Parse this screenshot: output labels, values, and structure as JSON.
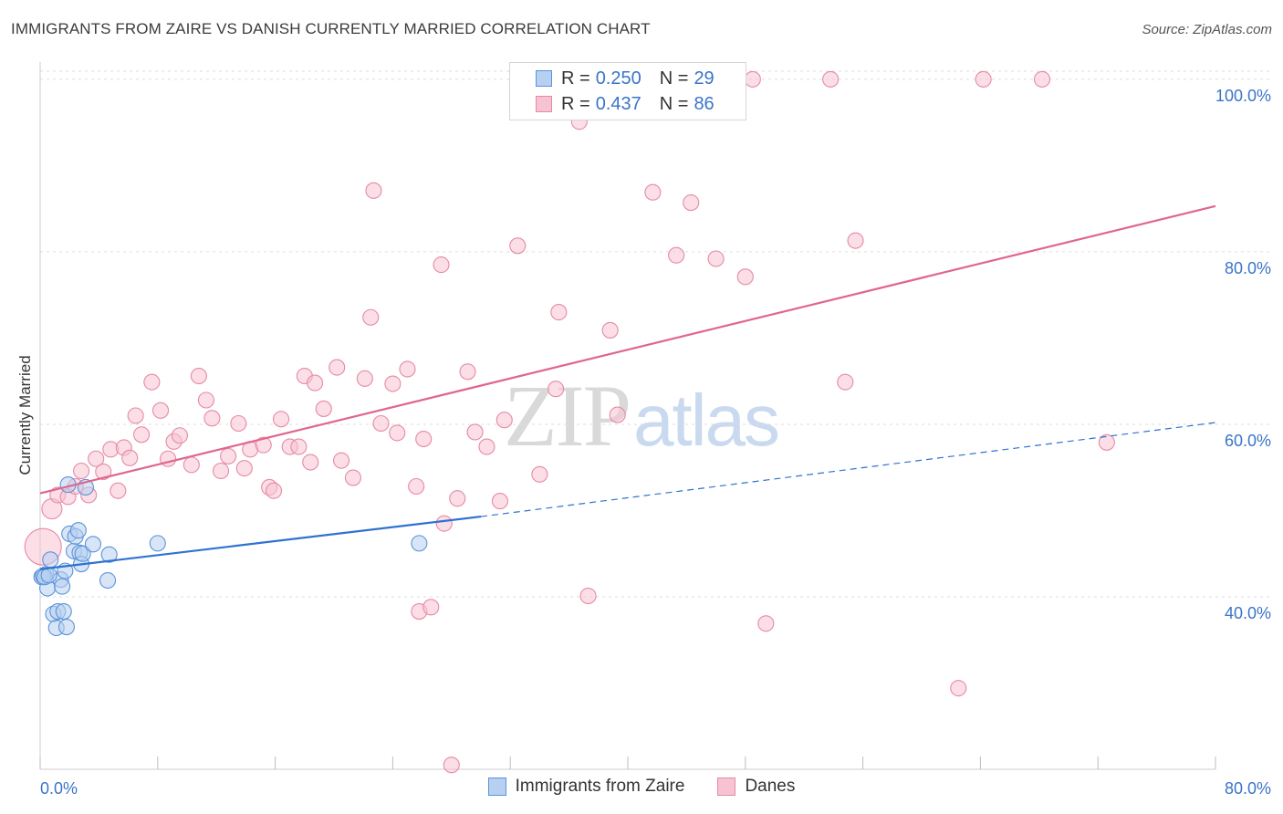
{
  "title": "IMMIGRANTS FROM ZAIRE VS DANISH CURRENTLY MARRIED CORRELATION CHART",
  "source": "Source: ZipAtlas.com",
  "watermark": {
    "zip": "ZIP",
    "atlas": "atlas"
  },
  "legend_top": {
    "rows": [
      {
        "r_key": "R =",
        "r_value": "0.250",
        "n_key": "N =",
        "n_value": "29"
      },
      {
        "r_key": "R =",
        "r_value": "0.437",
        "n_key": "N =",
        "n_value": "86"
      }
    ]
  },
  "legend_bottom": {
    "items": [
      {
        "label": "Immigrants from Zaire"
      },
      {
        "label": "Danes"
      }
    ]
  },
  "colors": {
    "blue_fill": "#b7d0f1",
    "blue_stroke": "#5c93d8",
    "blue_line": "#2f72d0",
    "pink_fill": "#f7c3d2",
    "pink_stroke": "#e68aa6",
    "pink_line": "#e0668e",
    "axis_text": "#3b74c8",
    "grid": "#dddddd"
  },
  "chart_data": {
    "type": "scatter",
    "title": "IMMIGRANTS FROM ZAIRE VS DANISH CURRENTLY MARRIED CORRELATION CHART",
    "xlabel": "",
    "ylabel": "Currently Married",
    "xlim": [
      0,
      80
    ],
    "ylim": [
      20,
      102
    ],
    "x_ticks": [
      {
        "value": 0,
        "label": "0.0%"
      },
      {
        "value": 80,
        "label": "80.0%"
      }
    ],
    "y_ticks": [
      {
        "value": 40,
        "label": "40.0%"
      },
      {
        "value": 60,
        "label": "60.0%"
      },
      {
        "value": 80,
        "label": "80.0%"
      },
      {
        "value": 100,
        "label": "100.0%"
      }
    ],
    "grid": true,
    "legend_position": "bottom",
    "series": [
      {
        "name": "Immigrants from Zaire",
        "color": "#5c93d8",
        "trend": {
          "x0": 0,
          "y0": 43.2,
          "x1": 30,
          "y1": 49.3,
          "dashed_to_x": 80,
          "dashed_to_y": 60.2
        },
        "points": [
          [
            0.1,
            42.3
          ],
          [
            0.4,
            42.6
          ],
          [
            0.5,
            41.0
          ],
          [
            0.7,
            44.3
          ],
          [
            0.9,
            38.0
          ],
          [
            1.1,
            36.4
          ],
          [
            1.2,
            38.3
          ],
          [
            1.4,
            42.0
          ],
          [
            1.5,
            41.2
          ],
          [
            1.6,
            38.3
          ],
          [
            1.7,
            43.0
          ],
          [
            1.8,
            36.5
          ],
          [
            1.9,
            53.0
          ],
          [
            2.0,
            47.3
          ],
          [
            2.3,
            45.3
          ],
          [
            2.4,
            47.0
          ],
          [
            2.6,
            47.7
          ],
          [
            2.7,
            45.1
          ],
          [
            2.8,
            43.8
          ],
          [
            2.9,
            45.0
          ],
          [
            3.1,
            52.7
          ],
          [
            3.6,
            46.1
          ],
          [
            4.7,
            44.9
          ],
          [
            4.6,
            41.9
          ],
          [
            8.0,
            46.2
          ],
          [
            25.8,
            46.2
          ],
          [
            0.2,
            42.4
          ],
          [
            0.3,
            42.3
          ],
          [
            0.6,
            42.5
          ]
        ]
      },
      {
        "name": "Danes",
        "color": "#e68aa6",
        "trend": {
          "x0": 0,
          "y0": 52.0,
          "x1": 80,
          "y1": 85.3
        },
        "points": [
          [
            0.2,
            45.8
          ],
          [
            0.8,
            50.2
          ],
          [
            1.2,
            51.8
          ],
          [
            1.9,
            51.6
          ],
          [
            2.4,
            52.8
          ],
          [
            2.8,
            54.6
          ],
          [
            3.3,
            51.8
          ],
          [
            3.8,
            56.0
          ],
          [
            4.3,
            54.5
          ],
          [
            4.8,
            57.1
          ],
          [
            5.3,
            52.3
          ],
          [
            5.7,
            57.3
          ],
          [
            6.1,
            56.1
          ],
          [
            6.5,
            61.0
          ],
          [
            6.9,
            58.8
          ],
          [
            7.6,
            64.9
          ],
          [
            8.2,
            61.6
          ],
          [
            8.7,
            56.0
          ],
          [
            9.1,
            58.0
          ],
          [
            9.5,
            58.7
          ],
          [
            10.3,
            55.3
          ],
          [
            10.8,
            65.6
          ],
          [
            11.3,
            62.8
          ],
          [
            11.7,
            60.7
          ],
          [
            12.3,
            54.6
          ],
          [
            12.8,
            56.3
          ],
          [
            13.5,
            60.1
          ],
          [
            13.9,
            54.9
          ],
          [
            14.3,
            57.1
          ],
          [
            15.2,
            57.6
          ],
          [
            15.6,
            52.7
          ],
          [
            15.9,
            52.3
          ],
          [
            16.4,
            60.6
          ],
          [
            17.0,
            57.4
          ],
          [
            17.6,
            57.4
          ],
          [
            18.0,
            65.6
          ],
          [
            18.4,
            55.6
          ],
          [
            18.7,
            64.8
          ],
          [
            19.3,
            61.8
          ],
          [
            20.2,
            66.6
          ],
          [
            20.5,
            55.8
          ],
          [
            21.3,
            53.8
          ],
          [
            22.1,
            65.3
          ],
          [
            22.5,
            72.4
          ],
          [
            22.7,
            87.1
          ],
          [
            23.2,
            60.1
          ],
          [
            24.0,
            64.7
          ],
          [
            24.3,
            59.0
          ],
          [
            25.0,
            66.4
          ],
          [
            25.6,
            52.8
          ],
          [
            25.8,
            38.3
          ],
          [
            26.1,
            58.3
          ],
          [
            26.6,
            38.8
          ],
          [
            27.3,
            78.5
          ],
          [
            27.5,
            48.5
          ],
          [
            28.0,
            20.5
          ],
          [
            28.4,
            51.4
          ],
          [
            29.1,
            66.1
          ],
          [
            29.6,
            59.1
          ],
          [
            30.4,
            57.4
          ],
          [
            31.3,
            51.1
          ],
          [
            31.6,
            60.5
          ],
          [
            32.5,
            80.7
          ],
          [
            34.0,
            54.2
          ],
          [
            35.1,
            64.1
          ],
          [
            35.3,
            73.0
          ],
          [
            36.7,
            95.1
          ],
          [
            37.3,
            40.1
          ],
          [
            38.0,
            99.8
          ],
          [
            38.8,
            70.9
          ],
          [
            39.3,
            61.1
          ],
          [
            41.7,
            86.9
          ],
          [
            43.3,
            79.6
          ],
          [
            44.3,
            85.7
          ],
          [
            44.7,
            100.0
          ],
          [
            46.0,
            79.2
          ],
          [
            48.0,
            77.1
          ],
          [
            48.5,
            100.0
          ],
          [
            49.4,
            36.9
          ],
          [
            53.8,
            100.0
          ],
          [
            54.8,
            64.9
          ],
          [
            55.5,
            81.3
          ],
          [
            62.5,
            29.4
          ],
          [
            64.2,
            100.0
          ],
          [
            68.2,
            100.0
          ],
          [
            72.6,
            57.9
          ]
        ]
      }
    ]
  }
}
